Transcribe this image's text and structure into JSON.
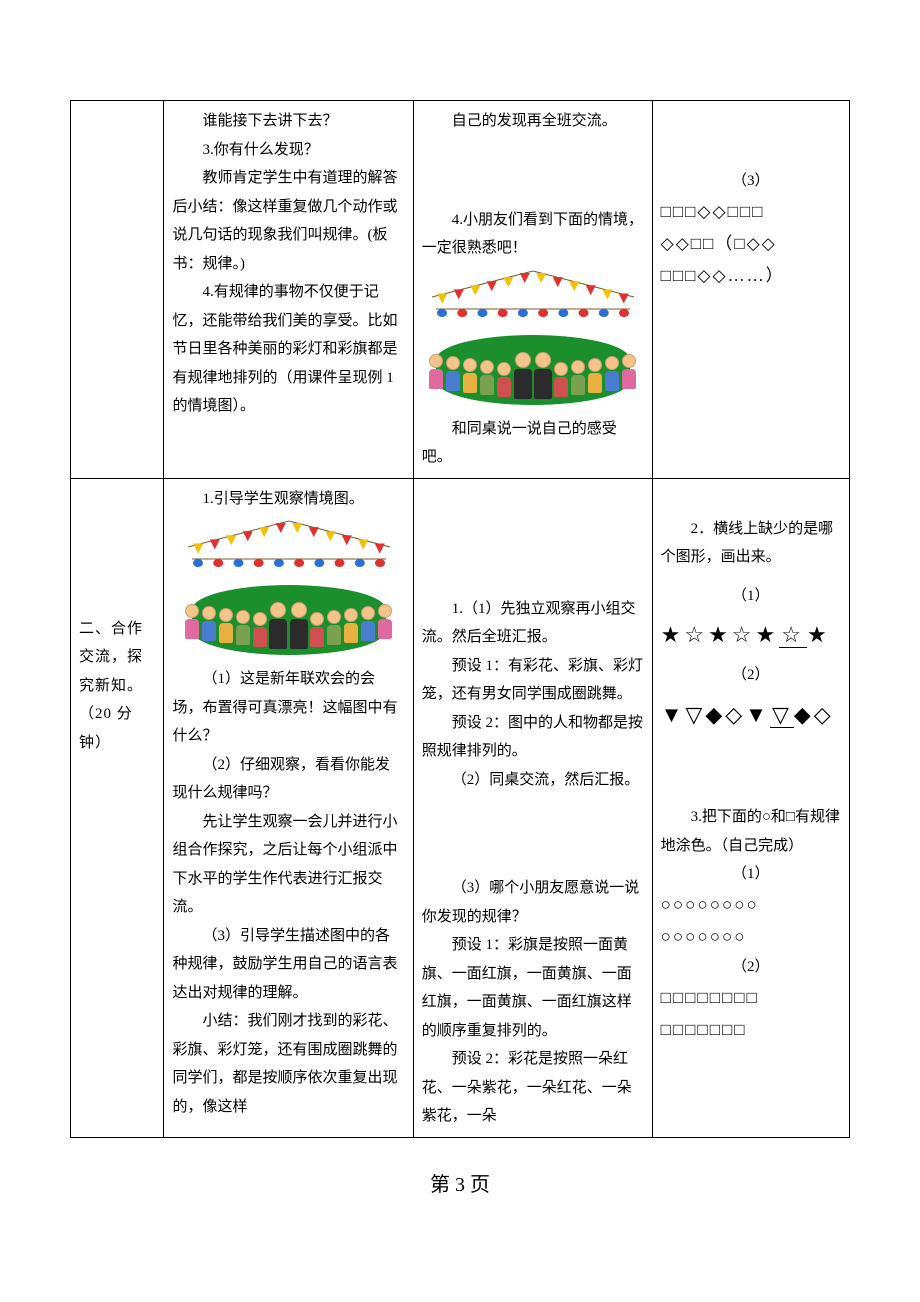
{
  "row1": {
    "col2": {
      "p1": "谁能接下去讲下去？",
      "p2": "3.你有什么发现？",
      "p3": "教师肯定学生中有道理的解答后小结：像这样重复做几个动作或说几句话的现象我们叫规律。(板书：规律。)",
      "p4": "4.有规律的事物不仅便于记忆，还能带给我们美的享受。比如节日里各种美丽的彩灯和彩旗都是有规律地排列的（用课件呈现例 1 的情境图）。"
    },
    "col3": {
      "p1": "自己的发现再全班交流。",
      "p4": "4.小朋友们看到下面的情境，一定很熟悉吧！",
      "p5": "和同桌说一说自己的感受吧。"
    },
    "col4": {
      "q3_label": "（3）",
      "q3_line1": "□□□◇◇□□□",
      "q3_line2_a": "◇◇□□（",
      "q3_line2_b": "□◇◇",
      "q3_line3": "□□□◇◇……）"
    }
  },
  "row2": {
    "col1": {
      "title_a": "二、合作交流，探究新知。",
      "title_b": "（20 分钟）"
    },
    "col2": {
      "p1": "1.引导学生观察情境图。",
      "p2": "（1）这是新年联欢会的会场，布置得可真漂亮！这幅图中有什么？",
      "p3": "（2）仔细观察，看看你能发现什么规律吗？",
      "p4": "先让学生观察一会儿并进行小组合作探究，之后让每个小组派中下水平的学生作代表进行汇报交流。",
      "p5": "（3）引导学生描述图中的各种规律，鼓励学生用自己的语言表达出对规律的理解。",
      "p6": "小结：我们刚才找到的彩花、彩旗、彩灯笼，还有围成圈跳舞的同学们，都是按顺序依次重复出现的，像这样"
    },
    "col3": {
      "p1": "1.（1）先独立观察再小组交流。然后全班汇报。",
      "p2": "预设 1：有彩花、彩旗、彩灯笼，还有男女同学围成圈跳舞。",
      "p3": "预设 2：图中的人和物都是按照规律排列的。",
      "p4": "（2）同桌交流，然后汇报。",
      "p5": "（3）哪个小朋友愿意说一说你发现的规律？",
      "p6": "预设 1：彩旗是按照一面黄旗、一面红旗，一面黄旗、一面红旗，一面黄旗、一面红旗这样的顺序重复排列的。",
      "p7": "预设 2：彩花是按照一朵红花、一朵紫花，一朵红花、一朵紫花，一朵"
    },
    "col4": {
      "q2_title": "2．横线上缺少的是哪个图形，画出来。",
      "q2_1_label": "（1）",
      "q2_1_syms_a": "★☆★☆★",
      "q2_1_syms_b": "☆",
      "q2_1_syms_c": "★",
      "q2_2_label": "（2）",
      "q2_2_syms_a": "▼▽◆◇▼",
      "q2_2_syms_b": "▽",
      "q2_2_syms_c": "◆◇",
      "q3_title": "3.把下面的○和□有规律地涂色。（自己完成）",
      "q3_1_label": "（1）",
      "q3_1_line1": "○○○○○○○○",
      "q3_1_line2": "○○○○○○○",
      "q3_2_label": "（2）",
      "q3_2_line1": "□□□□□□□□",
      "q3_2_line2": "□□□□□□□"
    }
  },
  "scene": {
    "flag_colors": [
      "#f2c200",
      "#e03030",
      "#f2c200",
      "#e03030",
      "#f2c200",
      "#e03030",
      "#f2c200",
      "#e03030",
      "#f2c200",
      "#e03030",
      "#f2c200",
      "#e03030"
    ],
    "lantern_colors": [
      "#2a6fd6",
      "#e03030",
      "#2a6fd6",
      "#e03030",
      "#2a6fd6",
      "#e03030",
      "#2a6fd6",
      "#e03030",
      "#2a6fd6",
      "#e03030"
    ],
    "kid_colors": [
      "#e06aa0",
      "#4a7dd0",
      "#e8b040",
      "#7aa050",
      "#d05050",
      "#2b2b2b",
      "#2b2b2b",
      "#d05050",
      "#7aa050",
      "#e8b040",
      "#4a7dd0",
      "#e06aa0"
    ]
  },
  "footer": "第 3 页"
}
